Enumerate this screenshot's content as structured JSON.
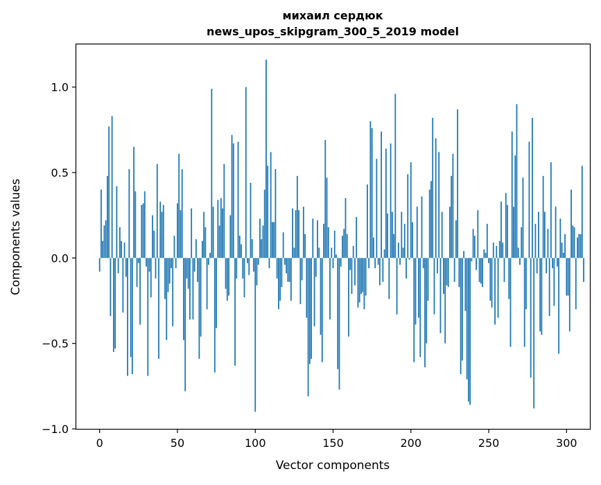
{
  "chart_data": {
    "type": "bar",
    "title": [
      "михаил сердюк",
      "news_upos_skipgram_300_5_2019 model"
    ],
    "xlabel": "Vector components",
    "ylabel": "Components values",
    "xlim": [
      -15,
      315
    ],
    "ylim": [
      -1.0,
      1.25
    ],
    "xticks": [
      0,
      50,
      100,
      150,
      200,
      250,
      300
    ],
    "yticks": [
      -1.0,
      -0.5,
      0.0,
      0.5,
      1.0
    ],
    "xtick_labels": [
      "0",
      "50",
      "100",
      "150",
      "200",
      "250",
      "300"
    ],
    "ytick_labels": [
      "−1.0",
      "−0.5",
      "0.0",
      "0.5",
      "1.0"
    ],
    "bar_color": "#1f77b4",
    "grid": false,
    "values": [
      -0.08,
      0.4,
      0.1,
      0.19,
      0.22,
      0.48,
      0.77,
      -0.34,
      0.83,
      -0.55,
      -0.53,
      0.42,
      -0.09,
      0.18,
      0.1,
      -0.32,
      0.09,
      -0.11,
      -0.69,
      0.52,
      -0.58,
      -0.68,
      0.65,
      0.39,
      -0.17,
      -0.03,
      -0.39,
      0.31,
      0.32,
      0.39,
      -0.05,
      -0.69,
      -0.08,
      -0.23,
      0.25,
      0.16,
      -0.12,
      0.55,
      -0.59,
      0.33,
      0.27,
      0.31,
      -0.24,
      -0.48,
      -0.2,
      -0.15,
      -0.06,
      -0.4,
      0.13,
      -0.06,
      0.32,
      0.61,
      0.28,
      0.52,
      -0.48,
      -0.78,
      -0.12,
      -0.18,
      -0.36,
      0.29,
      -0.36,
      -0.08,
      0.11,
      -0.14,
      -0.59,
      -0.46,
      0.1,
      0.27,
      0.18,
      -0.3,
      -0.04,
      0.03,
      0.99,
      0.3,
      -0.67,
      -0.41,
      0.34,
      0.19,
      0.35,
      0.29,
      0.55,
      -0.18,
      -0.25,
      -0.22,
      0.25,
      0.72,
      0.67,
      -0.63,
      -0.12,
      0.68,
      0.13,
      0.08,
      -0.12,
      -0.23,
      1.0,
      -0.03,
      -0.1,
      0.44,
      0.11,
      -0.08,
      -0.9,
      -0.16,
      -0.04,
      0.23,
      0.11,
      0.19,
      0.4,
      1.16,
      0.54,
      -0.06,
      0.62,
      0.21,
      0.21,
      0.52,
      -0.12,
      -0.3,
      -0.25,
      -0.17,
      0.15,
      -0.04,
      -0.09,
      -0.14,
      -0.14,
      -0.25,
      0.29,
      0.06,
      0.28,
      0.48,
      0.28,
      -0.27,
      -0.13,
      0.3,
      0.14,
      -0.35,
      -0.81,
      -0.62,
      -0.59,
      0.23,
      -0.4,
      -0.11,
      0.22,
      0.06,
      -0.45,
      -0.61,
      0.2,
      0.69,
      0.47,
      0.18,
      -0.36,
      0.06,
      -0.06,
      0.16,
      0.02,
      -0.65,
      -0.77,
      -0.05,
      0.13,
      0.17,
      0.35,
      0.14,
      -0.46,
      -0.07,
      -0.21,
      0.07,
      -0.16,
      0.24,
      -0.29,
      -0.26,
      -0.21,
      -0.2,
      -0.3,
      -0.22,
      0.43,
      -0.06,
      0.8,
      0.76,
      0.12,
      -0.06,
      0.58,
      -0.04,
      -0.16,
      0.74,
      -0.14,
      0.05,
      0.64,
      0.26,
      -0.24,
      0.67,
      0.27,
      0.14,
      0.96,
      -0.33,
      0.09,
      -0.04,
      0.27,
      0.06,
      0.2,
      -0.12,
      0.49,
      -0.01,
      0.56,
      0.21,
      -0.61,
      -0.39,
      0.3,
      -0.35,
      -0.58,
      0.36,
      -0.06,
      -0.64,
      -0.5,
      -0.25,
      0.4,
      0.45,
      0.82,
      -0.33,
      0.7,
      -0.09,
      0.62,
      -0.44,
      0.27,
      -0.21,
      -0.5,
      -0.16,
      -0.17,
      0.3,
      0.48,
      0.61,
      -0.14,
      0.22,
      0.87,
      -0.17,
      -0.68,
      -0.6,
      0.04,
      -0.31,
      -0.71,
      -0.84,
      -0.86,
      -0.02,
      0.17,
      0.13,
      -0.07,
      0.28,
      -0.14,
      -0.15,
      -0.17,
      0.05,
      0.03,
      0.2,
      -0.03,
      -0.25,
      -0.29,
      0.09,
      -0.39,
      0.07,
      -0.35,
      0.1,
      0.33,
      0.09,
      -0.14,
      0.38,
      0.31,
      -0.24,
      -0.52,
      0.74,
      0.3,
      0.6,
      0.9,
      0.06,
      -0.04,
      0.18,
      0.47,
      -0.52,
      -0.3,
      0.0,
      0.68,
      -0.7,
      0.82,
      -0.88,
      0.2,
      -0.09,
      0.27,
      -0.43,
      -0.45,
      0.48,
      0.27,
      -0.09,
      0.17,
      -0.34,
      0.56,
      -0.06,
      -0.28,
      0.3,
      -0.05,
      -0.56,
      0.23,
      0.09,
      0.03,
      0.14,
      -0.22,
      -0.22,
      -0.43,
      0.4,
      0.19,
      0.18,
      -0.3,
      0.12,
      0.14,
      0.14,
      0.54,
      -0.14
    ]
  }
}
